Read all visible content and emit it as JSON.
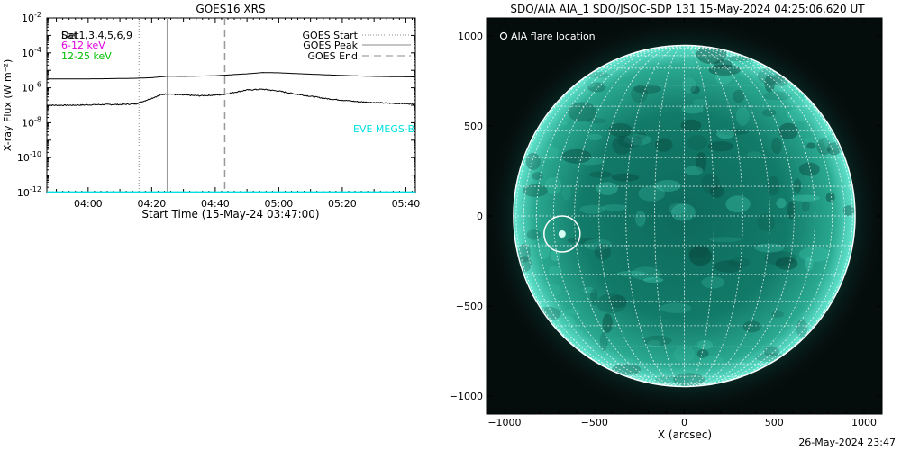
{
  "chart_data": [
    {
      "type": "line",
      "title": "GOES16 XRS",
      "xlabel": "Start Time (15-May-24 03:47:00)",
      "ylabel": "X-ray Flux (W m⁻²)",
      "x_range": [
        "03:47",
        "05:43"
      ],
      "x_ticks": [
        "04:00",
        "04:20",
        "04:40",
        "05:00",
        "05:20",
        "05:40"
      ],
      "y_scale": "log",
      "ylim": [
        1e-12,
        0.01
      ],
      "y_tick_labels": [
        {
          "base": "10",
          "exp": "-12"
        },
        {
          "base": "10",
          "exp": "-10"
        },
        {
          "base": "10",
          "exp": "-8"
        },
        {
          "base": "10",
          "exp": "-6"
        },
        {
          "base": "10",
          "exp": "-4"
        },
        {
          "base": "10",
          "exp": "-2"
        }
      ],
      "detector_legend": "Det1,3,4,5,6,9",
      "detector_legend_overprint": "Sat",
      "energy_legend": [
        {
          "text": "6-12 keV",
          "color": "#e000e0"
        },
        {
          "text": "12-25 keV",
          "color": "#00c000"
        }
      ],
      "marker_legend": [
        "GOES Start",
        "GOES Peak",
        "GOES End"
      ],
      "annotation": "EVE MEGS-B",
      "annotation_color": "#00e0e0",
      "markers": {
        "start": "04:16",
        "peak": "04:25",
        "end": "04:43"
      },
      "series": [
        {
          "color": "#000000",
          "time": [
            "03:47",
            "03:55",
            "04:05",
            "04:15",
            "04:20",
            "04:25",
            "04:30",
            "04:40",
            "04:50",
            "04:55",
            "05:00",
            "05:10",
            "05:20",
            "05:30",
            "05:43"
          ],
          "flux": [
            3.2e-06,
            3.2e-06,
            3.3e-06,
            3.5e-06,
            3.8e-06,
            4.6e-06,
            4.5e-06,
            4.9e-06,
            6.3e-06,
            7.5e-06,
            7.2e-06,
            6e-06,
            5.1e-06,
            4.5e-06,
            4.2e-06
          ]
        },
        {
          "color": "#000000",
          "time": [
            "03:47",
            "03:55",
            "04:05",
            "04:10",
            "04:15",
            "04:20",
            "04:23",
            "04:25",
            "04:28",
            "04:35",
            "04:42",
            "04:50",
            "04:55",
            "05:00",
            "05:05",
            "05:15",
            "05:25",
            "05:35",
            "05:43"
          ],
          "flux": [
            1e-07,
            1e-07,
            1.1e-07,
            1.1e-07,
            1.2e-07,
            2.5e-07,
            4e-07,
            4.6e-07,
            4e-07,
            3.5e-07,
            4e-07,
            7.5e-07,
            8.2e-07,
            6.5e-07,
            4.5e-07,
            2.4e-07,
            1.6e-07,
            1.3e-07,
            1.2e-07
          ]
        },
        {
          "color": "#00e0e0",
          "time": [
            "03:47",
            "05:43"
          ],
          "flux": [
            1.05e-12,
            1.05e-12
          ]
        }
      ]
    },
    {
      "type": "image",
      "title": "SDO/AIA AIA_1 SDO/JSOC-SDP 131 15-May-2024 04:25:06.620 UT",
      "xlabel": "X (arcsec)",
      "xlim": [
        -1100,
        1100
      ],
      "ylim": [
        -1100,
        1100
      ],
      "x_ticks": [
        -1000,
        -500,
        0,
        500,
        1000
      ],
      "y_ticks": [
        -1000,
        -500,
        0,
        500,
        1000
      ],
      "solar_radius_arcsec": 950,
      "grid_spacing_deg": 10,
      "legend": "AIA flare location",
      "flare_location": {
        "x": -680,
        "y": -100
      },
      "tint_color": "#2ec8b0"
    }
  ],
  "footer": "26-May-2024 23:47"
}
